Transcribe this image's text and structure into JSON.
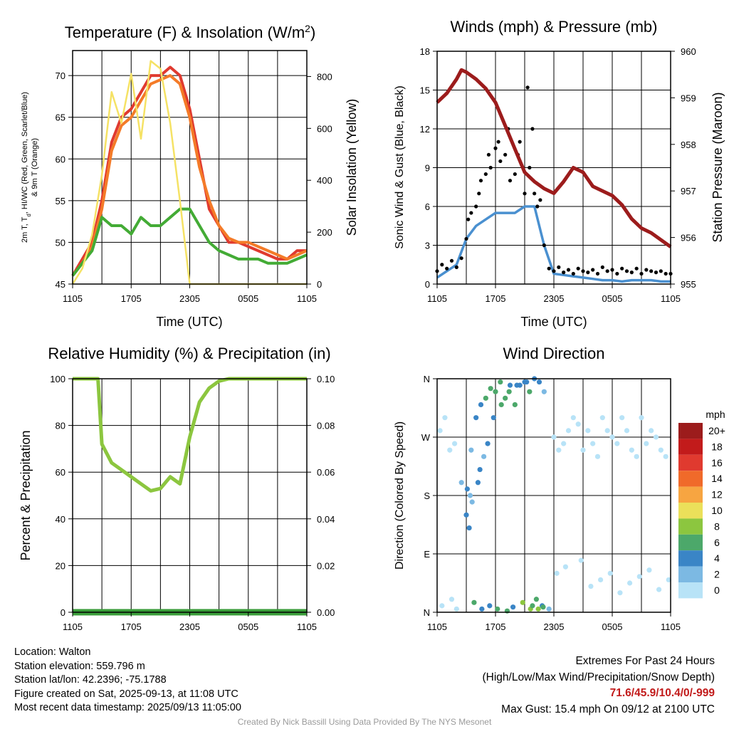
{
  "chart_data": [
    {
      "type": "line",
      "title": "Temperature (F) & Insolation (W/m²)",
      "xlabel": "Time (UTC)",
      "ylabel_lines": [
        "2m T, T",
        "d",
        ", HI/WC (Red, Green, Scarlet/Blue)",
        "& 9m T (Orange)"
      ],
      "ylabel2": "Solar Insolation (Yellow)",
      "x_ticks": [
        "1105",
        "1705",
        "2305",
        "0505",
        "1105"
      ],
      "ylim": [
        45,
        73
      ],
      "y_ticks": [
        45,
        50,
        55,
        60,
        65,
        70
      ],
      "y2lim": [
        0,
        900
      ],
      "y2_ticks": [
        0,
        200,
        400,
        600,
        800
      ],
      "colors": {
        "temp": "#e03a2f",
        "dew": "#43ab35",
        "heat": "#c21b1b",
        "nine": "#f47b28",
        "solar": "#f5e265"
      },
      "series": [
        {
          "key": "temp",
          "axis": "left",
          "x": [
            0,
            1,
            2,
            3,
            4,
            5,
            6,
            7,
            8,
            9,
            10,
            11,
            12,
            13,
            14,
            15,
            16,
            17,
            18,
            19,
            20,
            21,
            22,
            23,
            24
          ],
          "values": [
            46,
            48,
            50,
            55,
            62,
            65,
            66,
            68,
            70,
            70,
            71,
            70,
            66,
            60,
            54,
            52,
            50,
            50,
            49.5,
            49,
            48.5,
            48,
            48,
            49,
            49
          ]
        },
        {
          "key": "nine",
          "axis": "left",
          "x": [
            0,
            1,
            2,
            3,
            4,
            5,
            6,
            7,
            8,
            9,
            10,
            11,
            12,
            13,
            14,
            15,
            16,
            17,
            18,
            19,
            20,
            21,
            22,
            23,
            24
          ],
          "values": [
            46,
            47.5,
            49.5,
            54,
            61,
            64,
            65,
            67,
            69,
            69.5,
            70,
            69,
            65,
            59,
            55,
            52,
            50.5,
            50,
            50,
            49.5,
            49,
            48.5,
            48,
            48.5,
            49
          ]
        },
        {
          "key": "dew",
          "axis": "left",
          "x": [
            0,
            1,
            2,
            3,
            4,
            5,
            6,
            7,
            8,
            9,
            10,
            11,
            12,
            13,
            14,
            15,
            16,
            17,
            18,
            19,
            20,
            21,
            22,
            23,
            24
          ],
          "values": [
            46,
            47.5,
            49,
            53,
            52,
            52,
            51,
            53,
            52,
            52,
            53,
            54,
            54,
            52,
            50,
            49,
            48.5,
            48,
            48,
            48,
            47.5,
            47.5,
            47.5,
            48,
            48.5
          ]
        },
        {
          "key": "solar",
          "axis": "right",
          "x": [
            0,
            1,
            2,
            3,
            4,
            5,
            6,
            7,
            8,
            9,
            10,
            11,
            12,
            13,
            14,
            15,
            16,
            17,
            18,
            19,
            20,
            21,
            22,
            23,
            24
          ],
          "values": [
            0,
            60,
            190,
            420,
            740,
            620,
            810,
            560,
            860,
            830,
            620,
            320,
            0,
            0,
            0,
            0,
            0,
            0,
            0,
            0,
            0,
            0,
            0,
            0,
            0
          ]
        }
      ]
    },
    {
      "type": "scatter",
      "title": "Winds (mph) & Pressure (mb)",
      "xlabel": "Time (UTC)",
      "ylabel": "Sonic Wind & Gust (Blue, Black)",
      "ylabel2": "Station Pressure (Maroon)",
      "x_ticks": [
        "1105",
        "1705",
        "2305",
        "0505",
        "1105"
      ],
      "ylim": [
        0,
        18
      ],
      "y_ticks": [
        0,
        3,
        6,
        9,
        12,
        15,
        18
      ],
      "y2lim": [
        955,
        960
      ],
      "y2_ticks": [
        955,
        956,
        957,
        958,
        959,
        960
      ],
      "colors": {
        "wind": "#4a90d0",
        "gust": "#000000",
        "pressure": "#9c1c1c"
      },
      "series": [
        {
          "key": "wind",
          "axis": "left",
          "x": [
            0,
            1,
            2,
            3,
            4,
            5,
            6,
            7,
            8,
            9,
            10,
            11,
            12,
            13,
            14,
            15,
            16,
            17,
            18,
            19,
            20,
            21,
            22,
            23,
            24
          ],
          "values": [
            0.5,
            1,
            1.5,
            3.5,
            4.5,
            5,
            5.5,
            5.5,
            5.5,
            6,
            6,
            3,
            0.8,
            0.7,
            0.6,
            0.5,
            0.4,
            0.3,
            0.3,
            0.2,
            0.3,
            0.3,
            0.3,
            0.2,
            0.2
          ]
        },
        {
          "key": "gust",
          "axis": "left",
          "x": [
            0,
            0.5,
            1,
            1.5,
            2,
            2.5,
            3,
            3.2,
            3.5,
            4,
            4.3,
            4.5,
            5,
            5.3,
            5.5,
            6,
            6.3,
            6.5,
            7,
            7.3,
            7.5,
            8,
            8.3,
            8.5,
            9,
            9.3,
            9.5,
            9.8,
            10,
            10.3,
            10.6,
            11,
            11.5,
            12,
            12.5,
            13,
            13.5,
            14,
            14.5,
            15,
            15.5,
            16,
            16.5,
            17,
            17.5,
            18,
            18.5,
            19,
            19.5,
            20,
            20.5,
            21,
            21.5,
            22,
            22.5,
            23,
            23.5,
            24
          ],
          "values": [
            1,
            1.5,
            1.2,
            1.8,
            1.3,
            2,
            3.5,
            5,
            5.5,
            6,
            7,
            8,
            8.5,
            10,
            9,
            10.5,
            11,
            9.5,
            10,
            12,
            8,
            8.5,
            10,
            11,
            7,
            15.2,
            9,
            12,
            7,
            6,
            6.5,
            3,
            1.2,
            1,
            1.3,
            0.9,
            1.1,
            0.8,
            1.2,
            1,
            0.9,
            1.1,
            0.8,
            1.3,
            1,
            1.1,
            0.8,
            1.2,
            1,
            0.9,
            1.2,
            0.8,
            1.1,
            1,
            0.9,
            1,
            0.8,
            0.8
          ]
        },
        {
          "key": "pressure",
          "axis": "right",
          "x": [
            0,
            1,
            2,
            2.5,
            3,
            4,
            5,
            6,
            7,
            8,
            9,
            10,
            11,
            12,
            13,
            14,
            15,
            16,
            17,
            18,
            19,
            20,
            21,
            22,
            23,
            24
          ],
          "values": [
            958.9,
            959.1,
            959.4,
            959.6,
            959.55,
            959.4,
            959.2,
            958.9,
            958.4,
            957.9,
            957.4,
            957.2,
            957.05,
            956.95,
            957.2,
            957.5,
            957.4,
            957.1,
            957,
            956.9,
            956.7,
            956.4,
            956.2,
            956.1,
            955.95,
            955.8
          ]
        }
      ]
    },
    {
      "type": "line",
      "title": "Relative Humidity (%) & Precipitation (in)",
      "ylabel": "Percent & Precipitation",
      "x_ticks": [
        "1105",
        "1705",
        "2305",
        "0505",
        "1105"
      ],
      "ylim": [
        0,
        100
      ],
      "y_ticks": [
        0,
        20,
        40,
        60,
        80,
        100
      ],
      "y2lim": [
        0,
        0.1
      ],
      "y2_ticks": [
        "0.00",
        "0.02",
        "0.04",
        "0.06",
        "0.08",
        "0.10"
      ],
      "colors": {
        "rh": "#8cc63f",
        "precip": "#3a9d3a"
      },
      "series": [
        {
          "key": "rh",
          "axis": "left",
          "x": [
            0,
            1,
            2,
            2.6,
            3,
            4,
            5,
            6,
            7,
            8,
            9,
            10,
            11,
            12,
            13,
            14,
            15,
            16,
            17,
            18,
            19,
            20,
            21,
            22,
            23,
            24
          ],
          "values": [
            100,
            100,
            100,
            100,
            72,
            64,
            61,
            58,
            55,
            52,
            53,
            58,
            55,
            75,
            90,
            96,
            99,
            100,
            100,
            100,
            100,
            100,
            100,
            100,
            100,
            100
          ]
        },
        {
          "key": "precip",
          "axis": "right",
          "x": [
            0,
            24
          ],
          "values": [
            0,
            0
          ]
        }
      ]
    },
    {
      "type": "scatter",
      "title": "Wind Direction",
      "ylabel": "Direction (Colored By Speed)",
      "x_ticks": [
        "1105",
        "1705",
        "2305",
        "0505",
        "1105"
      ],
      "y_tick_labels": [
        "N",
        "E",
        "S",
        "W",
        "N"
      ],
      "ylim": [
        0,
        360
      ],
      "legend_title": "mph",
      "legend_labels": [
        "20+",
        "18",
        "16",
        "14",
        "12",
        "10",
        "8",
        "6",
        "4",
        "2",
        "0"
      ],
      "legend_colors": [
        "#9c1c1c",
        "#c21b1b",
        "#e03a2f",
        "#f06a2a",
        "#f7a541",
        "#ebe05a",
        "#8cc63f",
        "#4ca86a",
        "#3a85c6",
        "#7cb9e3",
        "#b8e3f7"
      ],
      "points": {
        "x": [
          0.3,
          0.8,
          1.3,
          1.8,
          2.5,
          3,
          3.3,
          3.5,
          4,
          4.5,
          5,
          5.5,
          6,
          6.5,
          7,
          7.5,
          8,
          8.5,
          9,
          9.5,
          10,
          10.5,
          11,
          11.5,
          12,
          12.5,
          13,
          13.5,
          14,
          14.5,
          15,
          15.5,
          16,
          16.5,
          17,
          17.5,
          18,
          18.5,
          19,
          19.5,
          20,
          20.5,
          21,
          21.5,
          22,
          22.5,
          23,
          23.5,
          0.5,
          1.5,
          2,
          3.8,
          4.6,
          5.4,
          6.2,
          7.2,
          7.8,
          8.8,
          9.6,
          10.2,
          10.8,
          12.3,
          13.2,
          14.8,
          15.8,
          16.8,
          17.8,
          18.8,
          19.8,
          20.8,
          21.8,
          22.8,
          23.8,
          3.1,
          3.4,
          3.6,
          4.2,
          4.4,
          4.8,
          5.2,
          5.8,
          6.6,
          7.4,
          8.2,
          9.2,
          9.8,
          10.4,
          10.9
        ],
        "values": [
          280,
          300,
          250,
          260,
          200,
          150,
          130,
          250,
          300,
          320,
          330,
          345,
          340,
          355,
          330,
          350,
          320,
          350,
          355,
          340,
          360,
          355,
          340,
          5,
          270,
          250,
          260,
          280,
          300,
          290,
          250,
          280,
          260,
          240,
          300,
          280,
          270,
          260,
          300,
          280,
          250,
          240,
          300,
          260,
          280,
          270,
          250,
          240,
          10,
          20,
          5,
          15,
          5,
          10,
          5,
          2,
          8,
          15,
          5,
          20,
          10,
          60,
          70,
          80,
          40,
          50,
          60,
          30,
          45,
          55,
          65,
          35,
          50,
          190,
          180,
          170,
          200,
          220,
          240,
          260,
          300,
          320,
          340,
          350,
          355,
          10,
          5,
          8
        ],
        "speeds": [
          1,
          1,
          0,
          1,
          3,
          4,
          4,
          3,
          4,
          5,
          6,
          6,
          7,
          6,
          7,
          5,
          6,
          4,
          5,
          6,
          4,
          4,
          3,
          2,
          0,
          1,
          0,
          1,
          1,
          0,
          0,
          1,
          0,
          0,
          1,
          0,
          0,
          1,
          0,
          0,
          1,
          0,
          0,
          1,
          0,
          0,
          1,
          0,
          1,
          0,
          0,
          6,
          5,
          4,
          7,
          6,
          5,
          8,
          9,
          7,
          4,
          0,
          1,
          0,
          0,
          1,
          0,
          0,
          1,
          0,
          0,
          0,
          1,
          4,
          3,
          3,
          4,
          4,
          3,
          4,
          5,
          6,
          6,
          5,
          5,
          7,
          8,
          6
        ]
      }
    }
  ],
  "info": {
    "location": "Location: Walton",
    "elevation": "Station elevation: 559.796 m",
    "latlon": "Station lat/lon: 42.2396; -75.1788",
    "created": "Figure created on Sat, 2025-09-13, at 11:08 UTC",
    "recent": "Most recent data timestamp: 2025/09/13 11:05:00"
  },
  "extremes": {
    "title": "Extremes For Past 24 Hours",
    "subtitle": "(High/Low/Max Wind/Precipitation/Snow Depth)",
    "values": "71.6/45.9/10.4/0/-999",
    "values_color": "#c21b1b",
    "gust": "Max Gust: 15.4 mph On 09/12 at 2100 UTC"
  },
  "credit": "Created By Nick Bassill Using Data Provided By The NYS Mesonet"
}
